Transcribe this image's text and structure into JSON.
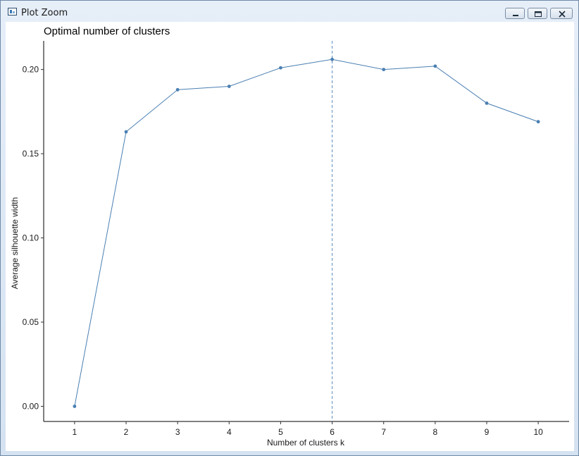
{
  "window": {
    "title": "Plot Zoom",
    "icons": {
      "app": "plot-app-icon",
      "minimize": "minimize-icon",
      "maximize": "maximize-icon",
      "close": "close-icon"
    }
  },
  "colors": {
    "series": "#4a7fb2",
    "vline": "#5a8cc0",
    "axis": "#000000"
  },
  "chart_data": {
    "type": "line",
    "title": "Optimal number of clusters",
    "xlabel": "Number of clusters k",
    "ylabel": "Average silhouette width",
    "x": [
      1,
      2,
      3,
      4,
      5,
      6,
      7,
      8,
      9,
      10
    ],
    "categories": [
      "1",
      "2",
      "3",
      "4",
      "5",
      "6",
      "7",
      "8",
      "9",
      "10"
    ],
    "series": [
      {
        "values": [
          0.0,
          0.163,
          0.188,
          0.19,
          0.201,
          0.206,
          0.2,
          0.202,
          0.18,
          0.169
        ]
      }
    ],
    "yticks": [
      0.0,
      0.05,
      0.1,
      0.15,
      0.2
    ],
    "ytick_labels": [
      "0.00",
      "0.05",
      "0.10",
      "0.15",
      "0.20"
    ],
    "ylim": [
      -0.009,
      0.217
    ],
    "xlim": [
      0.4,
      10.6
    ],
    "vline_x": 6,
    "vline_style": "dashed",
    "grid": false,
    "markers": true
  }
}
